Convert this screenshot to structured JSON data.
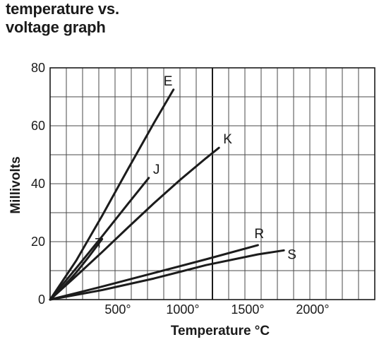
{
  "chart_data": {
    "type": "line",
    "title_lines": [
      "temperature vs.",
      "voltage graph"
    ],
    "xlabel": "Temperature °C",
    "ylabel": "Millivolts",
    "xlim": [
      0,
      2500
    ],
    "ylim": [
      0,
      80
    ],
    "x_ticks": [
      {
        "value": 500,
        "label": "500°"
      },
      {
        "value": 1000,
        "label": "1000°"
      },
      {
        "value": 1500,
        "label": "1500°"
      },
      {
        "value": 2000,
        "label": "2000°"
      }
    ],
    "y_ticks": [
      {
        "value": 0,
        "label": "0"
      },
      {
        "value": 20,
        "label": "20"
      },
      {
        "value": 40,
        "label": "40"
      },
      {
        "value": 60,
        "label": "60"
      },
      {
        "value": 80,
        "label": "80"
      }
    ],
    "grid_x_step": 125,
    "grid_y_step": 10,
    "bold_gridline_x": 1250,
    "grid": true,
    "series": [
      {
        "name": "E",
        "points": [
          [
            0,
            0
          ],
          [
            200,
            13.4
          ],
          [
            400,
            28.9
          ],
          [
            600,
            45.1
          ],
          [
            800,
            61.0
          ],
          [
            950,
            72.5
          ]
        ]
      },
      {
        "name": "K",
        "points": [
          [
            0,
            0
          ],
          [
            200,
            8.1
          ],
          [
            400,
            16.4
          ],
          [
            600,
            24.9
          ],
          [
            800,
            33.3
          ],
          [
            1000,
            41.3
          ],
          [
            1200,
            48.8
          ],
          [
            1300,
            52.4
          ]
        ]
      },
      {
        "name": "J",
        "points": [
          [
            0,
            0
          ],
          [
            200,
            10.8
          ],
          [
            400,
            21.8
          ],
          [
            600,
            33.1
          ],
          [
            760,
            42.0
          ]
        ]
      },
      {
        "name": "T",
        "points": [
          [
            0,
            0
          ],
          [
            100,
            4.3
          ],
          [
            200,
            9.3
          ],
          [
            300,
            14.9
          ],
          [
            400,
            20.9
          ]
        ]
      },
      {
        "name": "R",
        "points": [
          [
            0,
            0
          ],
          [
            400,
            4.5
          ],
          [
            800,
            9.2
          ],
          [
            1200,
            13.9
          ],
          [
            1600,
            18.8
          ]
        ]
      },
      {
        "name": "S",
        "points": [
          [
            0,
            0
          ],
          [
            400,
            3.3
          ],
          [
            800,
            7.3
          ],
          [
            1200,
            11.9
          ],
          [
            1600,
            15.6
          ],
          [
            1800,
            17.0
          ]
        ]
      }
    ],
    "colors": {
      "line": "#1c1c1c",
      "grid": "#4a4a4a",
      "background": "#ffffff"
    }
  }
}
